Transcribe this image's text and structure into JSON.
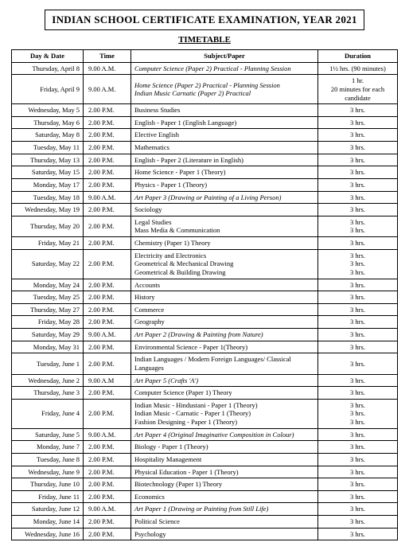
{
  "header": {
    "title": "INDIAN SCHOOL CERTIFICATE EXAMINATION, YEAR 2021",
    "subtitle": "TIMETABLE"
  },
  "columns": [
    "Day & Date",
    "Time",
    "Subject/Paper",
    "Duration"
  ],
  "rows": [
    {
      "day": "Thursday, April 8",
      "time": "9.00 A.M.",
      "subject": "Computer Science (Paper 2) Practical - Planning Session",
      "italic": true,
      "duration": "1½ hrs. (90 minutes)"
    },
    {
      "day": "Friday, April 9",
      "time": "9.00 A.M.",
      "subject": "Home Science (Paper 2) Practical - Planning Session\nIndian Music Carnatic (Paper 2) Practical",
      "italic": true,
      "duration": "1 hr.\n20 minutes for each candidate"
    },
    {
      "day": "Wednesday, May 5",
      "time": "2.00 P.M.",
      "subject": "Business Studies",
      "duration": "3 hrs."
    },
    {
      "day": "Thursday, May 6",
      "time": "2.00 P.M.",
      "subject": "English - Paper 1 (English Language)",
      "duration": "3 hrs."
    },
    {
      "day": "Saturday, May 8",
      "time": "2.00 P.M.",
      "subject": "Elective English",
      "duration": "3 hrs."
    },
    {
      "day": "Tuesday, May 11",
      "time": "2.00 P.M.",
      "subject": "Mathematics",
      "duration": "3 hrs."
    },
    {
      "day": "Thursday, May 13",
      "time": "2.00 P.M.",
      "subject": "English - Paper 2 (Literature in English)",
      "duration": "3 hrs."
    },
    {
      "day": "Saturday, May 15",
      "time": "2.00 P.M.",
      "subject": "Home Science - Paper 1 (Theory)",
      "duration": "3 hrs."
    },
    {
      "day": "Monday, May 17",
      "time": "2.00 P.M.",
      "subject": "Physics - Paper 1 (Theory)",
      "duration": "3 hrs."
    },
    {
      "day": "Tuesday, May 18",
      "time": "9.00 A.M.",
      "subject": "Art Paper 3 (Drawing or Painting of a Living Person)",
      "italic": true,
      "duration": "3 hrs."
    },
    {
      "day": "Wednesday, May 19",
      "time": "2.00 P.M.",
      "subject": "Sociology",
      "duration": "3 hrs."
    },
    {
      "day": "Thursday, May 20",
      "time": "2.00 P.M.",
      "subject": "Legal Studies\nMass Media & Communication",
      "duration": "3 hrs.\n3 hrs."
    },
    {
      "day": "Friday, May 21",
      "time": "2.00 P.M.",
      "subject": "Chemistry (Paper 1) Theory",
      "duration": "3 hrs."
    },
    {
      "day": "Saturday, May 22",
      "time": "2.00 P.M.",
      "subject": "Electricity and Electronics\nGeometrical & Mechanical Drawing\nGeometrical & Building Drawing",
      "duration": "3 hrs.\n3 hrs.\n3 hrs."
    },
    {
      "day": "Monday, May 24",
      "time": "2.00 P.M.",
      "subject": "Accounts",
      "duration": "3 hrs."
    },
    {
      "day": "Tuesday, May 25",
      "time": "2.00 P.M.",
      "subject": "History",
      "duration": "3 hrs."
    },
    {
      "day": "Thursday, May 27",
      "time": "2.00 P.M.",
      "subject": "Commerce",
      "duration": "3 hrs."
    },
    {
      "day": "Friday, May 28",
      "time": "2.00 P.M.",
      "subject": "Geography",
      "duration": "3 hrs."
    },
    {
      "day": "Saturday, May 29",
      "time": "9.00 A.M.",
      "subject": "Art Paper 2 (Drawing & Painting from Nature)",
      "italic": true,
      "duration": "3 hrs."
    },
    {
      "day": "Monday, May 31",
      "time": "2.00 P.M.",
      "subject": "Environmental Science - Paper 1(Theory)",
      "duration": "3 hrs."
    },
    {
      "day": "Tuesday, June 1",
      "time": "2.00 P.M.",
      "subject": "Indian Languages / Modern Foreign Languages/ Classical Languages",
      "duration": "3 hrs."
    },
    {
      "day": "Wednesday, June 2",
      "time": "9.00 A.M",
      "subject": "Art Paper 5 (Crafts 'A')",
      "italic": true,
      "duration": "3 hrs."
    },
    {
      "day": "Thursday, June 3",
      "time": "2.00 P.M.",
      "subject": "Computer Science (Paper 1) Theory",
      "duration": "3 hrs."
    },
    {
      "day": "Friday, June 4",
      "time": "2.00 P.M.",
      "subject": "Indian Music - Hindustani - Paper 1 (Theory)\nIndian Music - Carnatic - Paper 1 (Theory)\nFashion Designing - Paper 1 (Theory)",
      "duration": "3 hrs.\n3 hrs.\n3 hrs."
    },
    {
      "day": "Saturday, June 5",
      "time": "9.00 A.M.",
      "subject": "Art Paper 4 (Original Imaginative Composition in Colour)",
      "italic": true,
      "duration": "3 hrs."
    },
    {
      "day": "Monday, June 7",
      "time": "2.00 P.M.",
      "subject": "Biology - Paper 1 (Theory)",
      "duration": "3 hrs."
    },
    {
      "day": "Tuesday, June 8",
      "time": "2.00 P.M.",
      "subject": "Hospitality Management",
      "duration": "3 hrs."
    },
    {
      "day": "Wednesday, June 9",
      "time": "2.00 P.M.",
      "subject": "Physical Education - Paper 1 (Theory)",
      "duration": "3 hrs."
    },
    {
      "day": "Thursday, June 10",
      "time": "2.00 P.M.",
      "subject": "Biotechnology (Paper 1) Theory",
      "duration": "3 hrs."
    },
    {
      "day": "Friday, June 11",
      "time": "2.00 P.M.",
      "subject": "Economics",
      "duration": "3 hrs."
    },
    {
      "day": "Saturday, June 12",
      "time": "9.00 A.M.",
      "subject": "Art Paper 1 (Drawing or Painting from Still Life)",
      "italic": true,
      "duration": "3 hrs."
    },
    {
      "day": "Monday, June 14",
      "time": "2.00 P.M.",
      "subject": "Political Science",
      "duration": "3 hrs."
    },
    {
      "day": "Wednesday, June 16",
      "time": "2.00 P.M.",
      "subject": "Psychology",
      "duration": "3 hrs."
    }
  ]
}
